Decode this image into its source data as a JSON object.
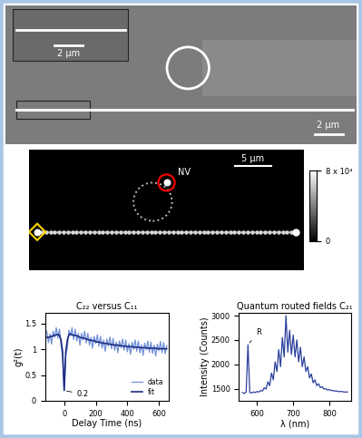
{
  "sem_image": {
    "inset_scale_bar": "2 μm",
    "scale_bar": "2 μm"
  },
  "fluorescence_image": {
    "label": "NV",
    "scale_bar": "5 μm",
    "colorbar": {
      "range": [
        0,
        80000
      ],
      "ticks": [
        0,
        {
          "value": 80000,
          "label": "8 x 10⁴"
        }
      ]
    }
  },
  "chart_data": [
    {
      "type": "line",
      "title": "C₂₂ versus C₁₁",
      "x_label": "Delay Time (ns)",
      "y_label": "g²(t)",
      "x": [
        -110,
        -100,
        -90,
        -80,
        -70,
        -60,
        -50,
        -40,
        -30,
        -20,
        -10,
        0,
        10,
        20,
        30,
        40,
        50,
        60,
        70,
        80,
        90,
        100,
        110,
        120,
        130,
        140,
        150,
        160,
        170,
        180,
        190,
        200,
        210,
        220,
        230,
        240,
        250,
        260,
        270,
        280,
        290,
        300,
        310,
        320,
        330,
        340,
        350,
        360,
        370,
        380,
        390,
        400,
        410,
        420,
        430,
        440,
        450,
        460,
        470,
        480,
        490,
        500,
        510,
        520,
        530,
        540,
        550,
        560,
        570,
        580,
        590,
        600,
        610,
        620,
        630,
        640,
        650
      ],
      "series": [
        {
          "name": "data",
          "color": "#7090d8",
          "values": [
            1.35,
            1.13,
            1.3,
            1.1,
            1.35,
            1.23,
            1.42,
            1.21,
            1.39,
            1.08,
            0.85,
            0.2,
            0.88,
            1.03,
            1.37,
            1.26,
            1.42,
            1.19,
            1.39,
            1.16,
            1.31,
            1.08,
            1.31,
            1.18,
            1.35,
            1.12,
            1.31,
            1.08,
            1.23,
            1.02,
            1.25,
            1.11,
            1.28,
            1.06,
            1.25,
            1.02,
            1.18,
            0.96,
            1.2,
            1.06,
            1.24,
            1.01,
            1.21,
            0.98,
            1.14,
            0.93,
            1.16,
            1.03,
            1.2,
            0.98,
            1.18,
            0.95,
            1.11,
            0.9,
            1.14,
            1.0,
            1.18,
            0.96,
            1.16,
            0.93,
            1.09,
            0.88,
            1.12,
            0.99,
            1.16,
            0.94,
            1.14,
            0.92,
            1.08,
            0.87,
            1.1,
            0.97,
            1.15,
            0.93,
            1.13,
            0.91,
            1.07
          ]
        },
        {
          "name": "fit",
          "color": "#1c2a80",
          "values": [
            1.23,
            1.23,
            1.24,
            1.25,
            1.26,
            1.27,
            1.28,
            1.29,
            1.27,
            1.18,
            0.95,
            0.2,
            0.95,
            1.18,
            1.28,
            1.3,
            1.28,
            1.27,
            1.27,
            1.26,
            1.25,
            1.23,
            1.22,
            1.22,
            1.21,
            1.2,
            1.19,
            1.18,
            1.17,
            1.17,
            1.16,
            1.15,
            1.14,
            1.14,
            1.13,
            1.12,
            1.12,
            1.11,
            1.11,
            1.1,
            1.1,
            1.09,
            1.09,
            1.08,
            1.08,
            1.08,
            1.07,
            1.07,
            1.06,
            1.06,
            1.06,
            1.05,
            1.05,
            1.05,
            1.05,
            1.04,
            1.04,
            1.04,
            1.04,
            1.03,
            1.03,
            1.03,
            1.03,
            1.03,
            1.02,
            1.02,
            1.02,
            1.02,
            1.02,
            1.02,
            1.01,
            1.01,
            1.01,
            1.01,
            1.01,
            1.01,
            1.01
          ]
        }
      ],
      "xlim": [
        -120,
        660
      ],
      "xticks": [
        0,
        200,
        400,
        600
      ],
      "ylim": [
        0,
        1.7
      ],
      "yticks": [
        0,
        0.5,
        1,
        1.5
      ],
      "legend": "lower right",
      "annotations": [
        {
          "text": "0.2",
          "x": 0,
          "y": 0.2
        }
      ]
    },
    {
      "type": "line",
      "title": "Quantum routed fields C₂₁",
      "x_label": "λ (nm)",
      "y_label": "Intensity (Counts)",
      "x": [
        560,
        565,
        570,
        575,
        580,
        585,
        590,
        595,
        600,
        605,
        610,
        615,
        620,
        625,
        630,
        635,
        640,
        645,
        650,
        655,
        660,
        665,
        670,
        675,
        680,
        685,
        690,
        695,
        700,
        705,
        710,
        715,
        720,
        725,
        730,
        735,
        740,
        745,
        750,
        755,
        760,
        765,
        770,
        775,
        780,
        785,
        790,
        795,
        800,
        805,
        810,
        815,
        820,
        825,
        830,
        835,
        840,
        845,
        850
      ],
      "values": [
        1420,
        1400,
        1430,
        2400,
        1420,
        1410,
        1430,
        1420,
        1440,
        1430,
        1460,
        1450,
        1520,
        1490,
        1640,
        1560,
        1820,
        1680,
        2050,
        1850,
        2300,
        1950,
        2550,
        2150,
        3000,
        2250,
        2700,
        2200,
        2600,
        2150,
        2500,
        2050,
        2350,
        1950,
        2150,
        1850,
        1950,
        1720,
        1800,
        1620,
        1680,
        1560,
        1600,
        1520,
        1540,
        1490,
        1500,
        1470,
        1480,
        1460,
        1460,
        1450,
        1450,
        1440,
        1440,
        1440,
        1430,
        1430,
        1430
      ],
      "color": "#2a3f9c",
      "xlim": [
        550,
        860
      ],
      "xticks": [
        600,
        700,
        800
      ],
      "ylim": [
        1250,
        3050
      ],
      "yticks": [
        1500,
        2000,
        2500,
        3000
      ],
      "annotations": [
        {
          "text": "R",
          "x": 575,
          "y": 2400
        }
      ]
    }
  ]
}
